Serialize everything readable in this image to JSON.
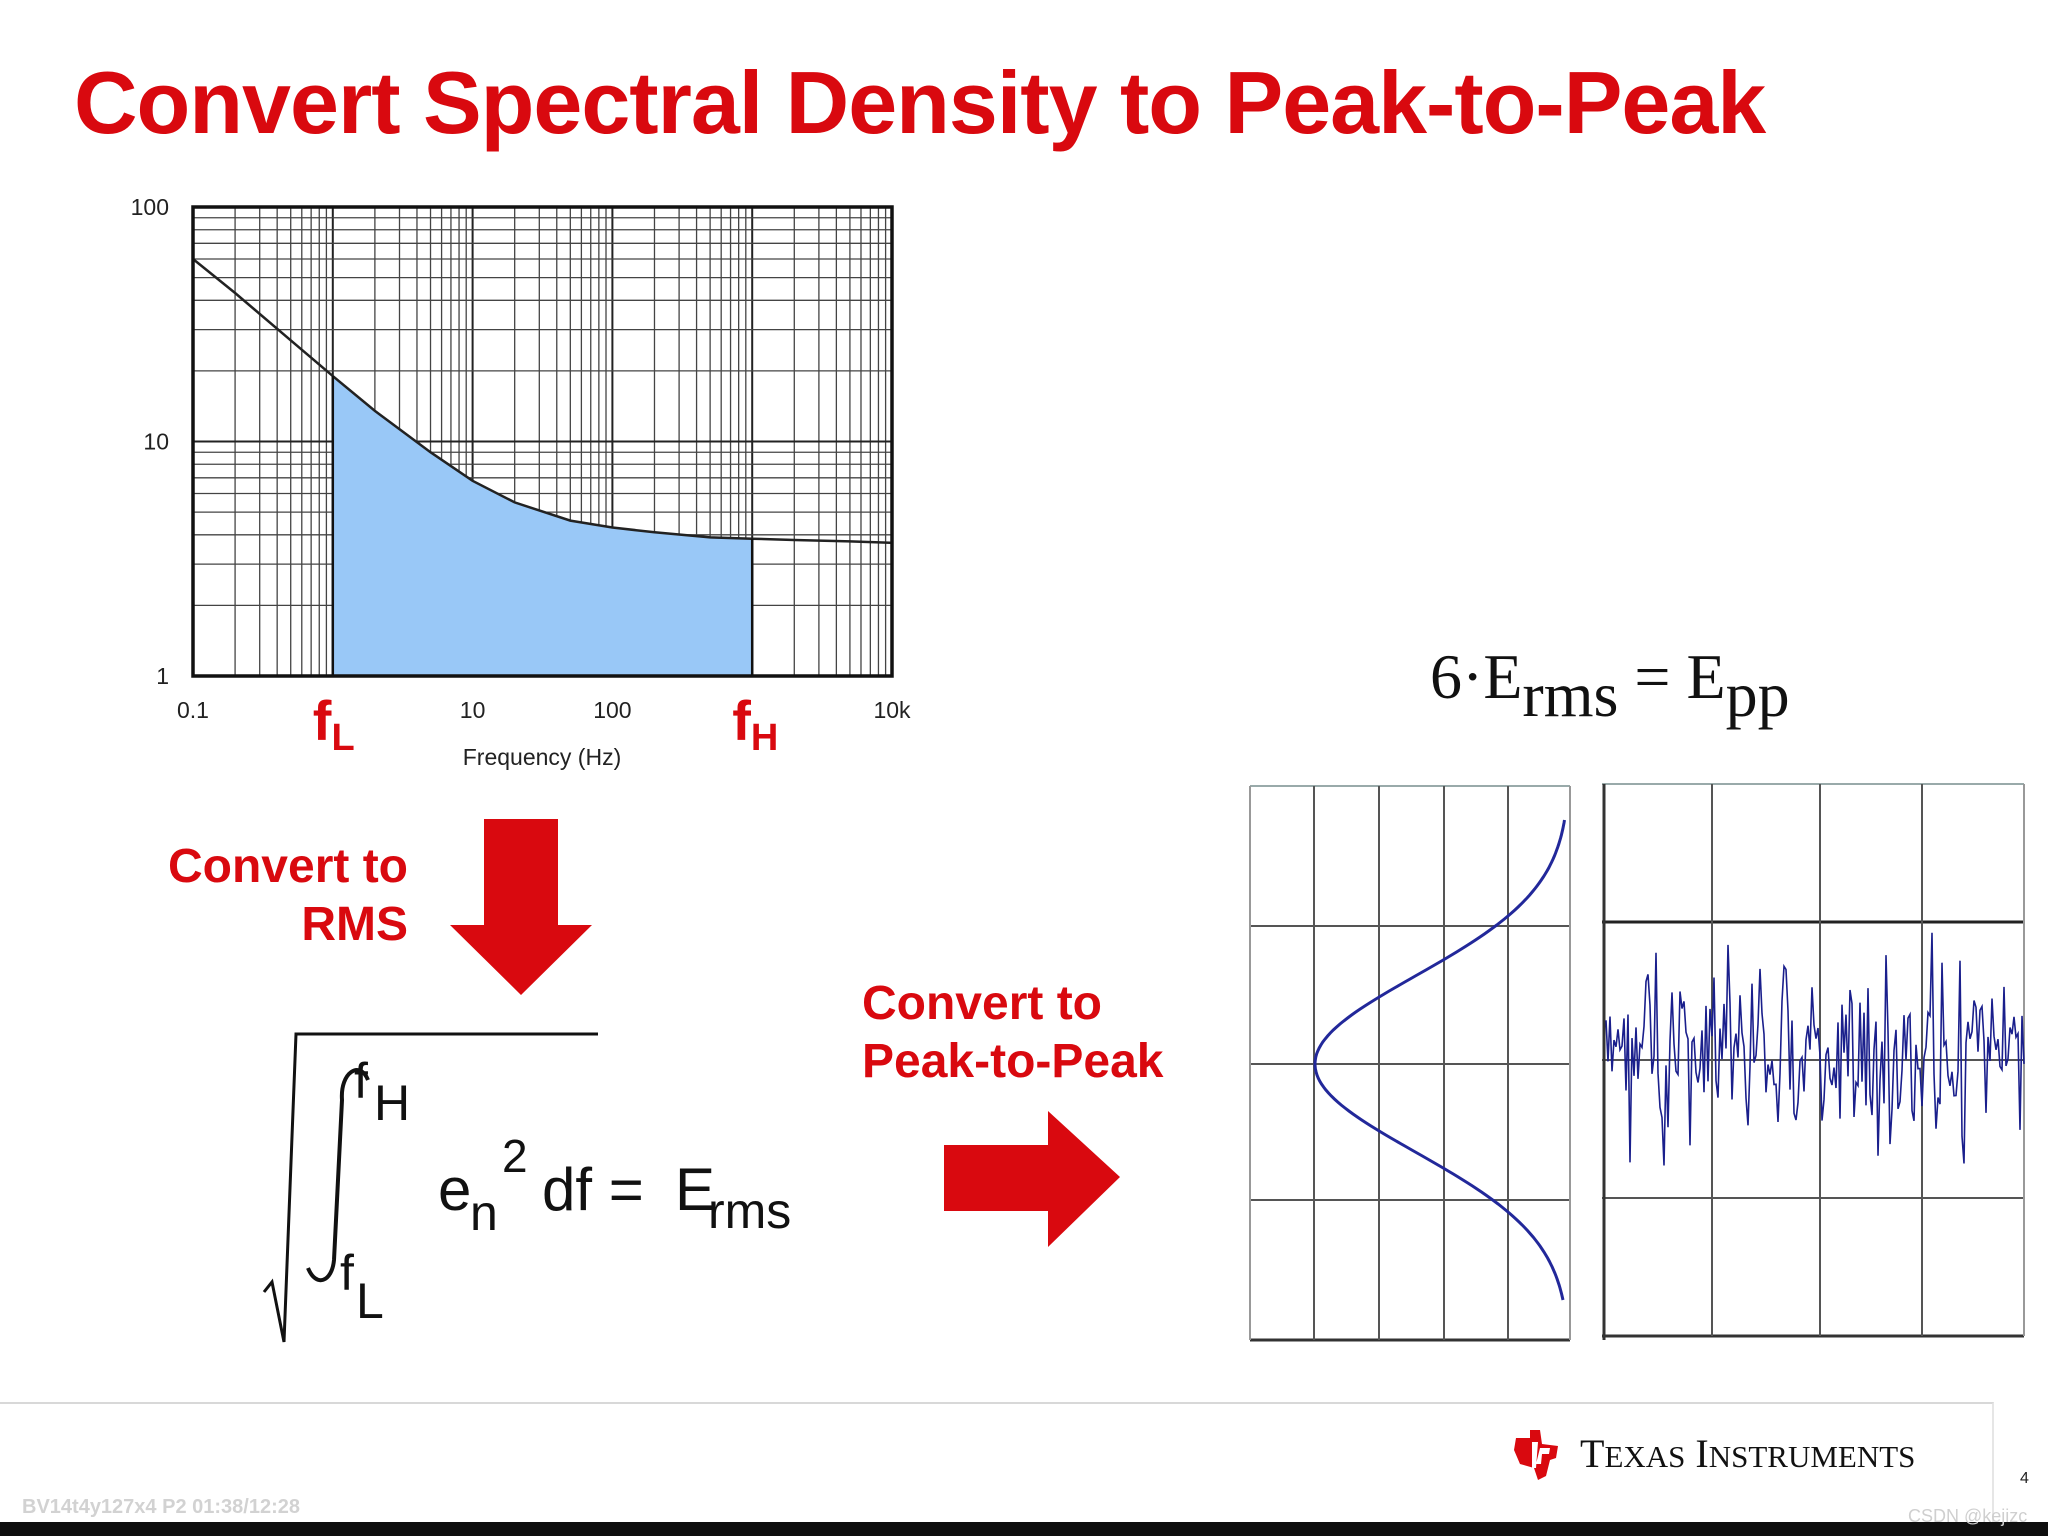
{
  "slide": {
    "title": "Convert Spectral Density to Peak-to-Peak",
    "page_number": "4"
  },
  "psd_chart": {
    "type": "line",
    "y_scale": "log",
    "x_scale": "log",
    "y_ticks": [
      "100",
      "10",
      "1"
    ],
    "x_ticks": [
      "0.1",
      "10",
      "100",
      "10k"
    ],
    "x_markers": [
      {
        "label": "f",
        "sub": "L",
        "x": 1
      },
      {
        "label": "f",
        "sub": "H",
        "x": 1000
      }
    ],
    "xlabel": "Frequency (Hz)",
    "xlim": [
      0.1,
      10000
    ],
    "ylim": [
      1,
      100
    ],
    "grid": true,
    "curve": {
      "x": [
        0.1,
        0.2,
        0.5,
        1,
        2,
        5,
        10,
        20,
        50,
        100,
        200,
        500,
        1000,
        2000,
        5000,
        10000
      ],
      "y": [
        60,
        43,
        27,
        19,
        13.5,
        9,
        6.8,
        5.5,
        4.6,
        4.3,
        4.1,
        3.9,
        3.85,
        3.8,
        3.75,
        3.7
      ]
    },
    "shaded_range": [
      1,
      1000
    ],
    "colors": {
      "curve": "#222222",
      "fill": "#99c8f7",
      "marker": "#d9090f"
    }
  },
  "steps": {
    "rms_label_line1": "Convert to",
    "rms_label_line2": "RMS",
    "pp_label_line1": "Convert to",
    "pp_label_line2": "Peak-to-Peak"
  },
  "rms_equation": {
    "upper_limit": "f",
    "upper_sub": "H",
    "lower_limit": "f",
    "lower_sub": "L",
    "integrand": "e",
    "integrand_sub": "n",
    "exponent": "2",
    "differential": "df =",
    "result": "E",
    "result_sub": "rms"
  },
  "pp_equation": {
    "factor": "6·E",
    "factor_sub": "rms",
    "equals": "= E",
    "result_sub": "pp"
  },
  "footer": {
    "brand_T": "T",
    "brand_exas": "EXAS",
    "brand_I": "I",
    "brand_nstruments": "NSTRUMENTS"
  },
  "watermarks": {
    "left": "BV14t4y127x4 P2 01:38/12:28",
    "right": "CSDN @kejizc"
  },
  "colors": {
    "accent": "#d9090f",
    "waveform": "#1a1f8c"
  }
}
